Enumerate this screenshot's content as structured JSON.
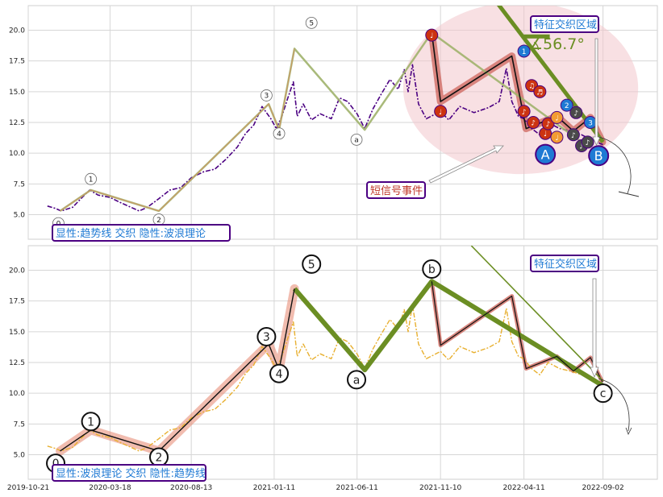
{
  "chart_data": [
    {
      "type": "line",
      "panel": "top",
      "ylim": [
        3.0,
        22.0
      ],
      "yticks": [
        5.0,
        7.5,
        10.0,
        12.5,
        15.0,
        17.5,
        20.0
      ],
      "ytick_labels": [
        "5.0",
        "7.5",
        "10.0",
        "12.5",
        "15.0",
        "17.5",
        "20.0"
      ],
      "xlim": [
        "2019-10-21",
        "2022-12-10"
      ],
      "grid": true,
      "price_color": "#4b0082",
      "price_series": [
        [
          "2019-11-25",
          5.7
        ],
        [
          "2019-12-10",
          5.5
        ],
        [
          "2019-12-20",
          5.3
        ],
        [
          "2020-01-10",
          5.6
        ],
        [
          "2020-01-25",
          6.3
        ],
        [
          "2020-02-10",
          7.0
        ],
        [
          "2020-02-25",
          6.6
        ],
        [
          "2020-03-18",
          6.4
        ],
        [
          "2020-04-05",
          6.0
        ],
        [
          "2020-04-25",
          5.6
        ],
        [
          "2020-05-10",
          5.3
        ],
        [
          "2020-05-25",
          5.6
        ],
        [
          "2020-06-15",
          6.3
        ],
        [
          "2020-07-05",
          7.0
        ],
        [
          "2020-07-25",
          7.2
        ],
        [
          "2020-08-13",
          8.0
        ],
        [
          "2020-09-05",
          8.5
        ],
        [
          "2020-09-25",
          8.7
        ],
        [
          "2020-10-15",
          9.5
        ],
        [
          "2020-11-05",
          10.5
        ],
        [
          "2020-11-20",
          11.6
        ],
        [
          "2020-12-05",
          12.3
        ],
        [
          "2020-12-20",
          13.8
        ],
        [
          "2021-01-05",
          12.8
        ],
        [
          "2021-01-15",
          12.0
        ],
        [
          "2021-01-25",
          13.0
        ],
        [
          "2021-02-05",
          14.5
        ],
        [
          "2021-02-15",
          15.8
        ],
        [
          "2021-02-22",
          13.0
        ],
        [
          "2021-03-05",
          14.0
        ],
        [
          "2021-03-20",
          12.7
        ],
        [
          "2021-04-05",
          13.2
        ],
        [
          "2021-04-25",
          12.8
        ],
        [
          "2021-05-10",
          14.5
        ],
        [
          "2021-05-25",
          14.2
        ],
        [
          "2021-06-11",
          13.2
        ],
        [
          "2021-06-25",
          12.0
        ],
        [
          "2021-07-10",
          13.6
        ],
        [
          "2021-07-25",
          14.8
        ],
        [
          "2021-08-10",
          16.0
        ],
        [
          "2021-08-25",
          15.2
        ],
        [
          "2021-09-05",
          16.8
        ],
        [
          "2021-09-12",
          15.0
        ],
        [
          "2021-09-20",
          17.2
        ],
        [
          "2021-10-01",
          14.0
        ],
        [
          "2021-10-15",
          12.8
        ],
        [
          "2021-11-10",
          13.4
        ],
        [
          "2021-11-25",
          12.7
        ],
        [
          "2021-12-15",
          13.8
        ],
        [
          "2022-01-10",
          13.3
        ],
        [
          "2022-02-05",
          13.7
        ],
        [
          "2022-02-25",
          14.2
        ],
        [
          "2022-03-10",
          16.9
        ],
        [
          "2022-03-20",
          14.2
        ],
        [
          "2022-04-01",
          13.0
        ],
        [
          "2022-04-11",
          12.8
        ],
        [
          "2022-04-25",
          12.0
        ],
        [
          "2022-05-10",
          11.5
        ],
        [
          "2022-05-25",
          12.5
        ],
        [
          "2022-06-15",
          12.0
        ],
        [
          "2022-07-05",
          11.8
        ],
        [
          "2022-07-25",
          11.5
        ],
        [
          "2022-08-15",
          11.0
        ],
        [
          "2022-09-02",
          10.7
        ]
      ],
      "trend_lines": [
        {
          "color": "#6b8e23",
          "points": [
            [
              "2022-01-05",
              25.0
            ],
            [
              "2022-09-02",
              10.9
            ]
          ]
        },
        {
          "color": "#6b8e23",
          "points": [
            [
              "2022-04-11",
              19.5
            ],
            [
              "2022-05-28",
              19.5
            ]
          ]
        }
      ],
      "wave_path": {
        "color": "#a0b26b",
        "points": [
          [
            "2019-12-18",
            5.3
          ],
          [
            "2020-02-12",
            7.0
          ],
          [
            "2020-06-15",
            5.3
          ],
          [
            "2021-01-01",
            14.0
          ],
          [
            "2021-01-20",
            11.9
          ],
          [
            "2021-02-17",
            18.5
          ],
          [
            "2021-06-25",
            11.9
          ],
          [
            "2021-10-25",
            19.8
          ],
          [
            "2022-07-25",
            10.9
          ]
        ]
      },
      "wave_labels": [
        {
          "text": "0",
          "x": "2019-12-15",
          "y": 4.3
        },
        {
          "text": "1",
          "x": "2020-02-12",
          "y": 7.9
        },
        {
          "text": "2",
          "x": "2020-06-15",
          "y": 4.6
        },
        {
          "text": "3",
          "x": "2020-12-28",
          "y": 14.7
        },
        {
          "text": "4",
          "x": "2021-01-20",
          "y": 11.6
        },
        {
          "text": "5",
          "x": "2021-03-20",
          "y": 20.6
        },
        {
          "text": "a",
          "x": "2021-06-10",
          "y": 11.1
        }
      ],
      "highlight_path": {
        "color": "#c0392b",
        "points": [
          [
            "2021-10-25",
            19.8
          ],
          [
            "2021-11-10",
            14.2
          ],
          [
            "2022-03-20",
            17.9
          ],
          [
            "2022-04-15",
            12.0
          ],
          [
            "2022-06-10",
            13.0
          ],
          [
            "2022-07-10",
            11.8
          ],
          [
            "2022-08-10",
            12.9
          ],
          [
            "2022-09-01",
            10.9
          ]
        ]
      },
      "event_markers": [
        {
          "text": "♩",
          "x": "2021-10-25",
          "y": 19.6,
          "color": "#cc3311"
        },
        {
          "text": "♩",
          "x": "2021-11-10",
          "y": 13.4,
          "color": "#cc3311"
        },
        {
          "text": "1",
          "x": "2022-04-11",
          "y": 18.3,
          "color": "#1f7ad4"
        },
        {
          "text": "♪",
          "x": "2022-04-11",
          "y": 13.4,
          "color": "#cc3311"
        },
        {
          "text": "♫",
          "x": "2022-04-25",
          "y": 15.5,
          "color": "#cc3311"
        },
        {
          "text": "♬",
          "x": "2022-05-10",
          "y": 15.0,
          "color": "#cc3311"
        },
        {
          "text": "♪",
          "x": "2022-04-28",
          "y": 12.5,
          "color": "#cc3311"
        },
        {
          "text": "♩",
          "x": "2022-05-20",
          "y": 11.6,
          "color": "#cc3311"
        },
        {
          "text": "♪",
          "x": "2022-05-25",
          "y": 12.4,
          "color": "#cc3311"
        },
        {
          "text": "♩",
          "x": "2022-06-10",
          "y": 12.9,
          "color": "#f39c33"
        },
        {
          "text": "♩",
          "x": "2022-06-10",
          "y": 11.3,
          "color": "#f39c33"
        },
        {
          "text": "2",
          "x": "2022-06-28",
          "y": 13.9,
          "color": "#1f7ad4"
        },
        {
          "text": "♪",
          "x": "2022-07-15",
          "y": 13.3,
          "color": "#4a4a4a"
        },
        {
          "text": "♪",
          "x": "2022-07-10",
          "y": 11.5,
          "color": "#4a4a4a"
        },
        {
          "text": "♪",
          "x": "2022-07-25",
          "y": 10.6,
          "color": "#4a4a4a"
        },
        {
          "text": "3",
          "x": "2022-08-10",
          "y": 12.5,
          "color": "#1f7ad4"
        },
        {
          "text": "♪",
          "x": "2022-08-05",
          "y": 10.9,
          "color": "#4a4a4a"
        }
      ],
      "big_markers": [
        {
          "text": "A",
          "x": "2022-05-20",
          "y": 9.9,
          "color": "#1f7ad4"
        },
        {
          "text": "B",
          "x": "2022-08-25",
          "y": 9.8,
          "color": "#1f7ad4"
        }
      ],
      "zone_ellipse": {
        "cx": "2022-04-05",
        "cy": 15.3,
        "rx_days": 214,
        "ry": 7.0
      },
      "annotations": {
        "legend_box": "显性:趋势线 交织 隐性:波浪理论",
        "zone_label": "特征交织区域",
        "angle_label": "∡56.7°",
        "signal_label": "短信号事件"
      }
    },
    {
      "type": "line",
      "panel": "bottom",
      "ylim": [
        3.0,
        22.0
      ],
      "yticks": [
        5.0,
        7.5,
        10.0,
        12.5,
        15.0,
        17.5,
        20.0
      ],
      "ytick_labels": [
        "5.0",
        "7.5",
        "10.0",
        "12.5",
        "15.0",
        "17.5",
        "20.0"
      ],
      "xlim": [
        "2019-10-21",
        "2022-12-10"
      ],
      "xticks": [
        "2019-10-21",
        "2020-03-18",
        "2020-08-13",
        "2021-01-11",
        "2021-06-11",
        "2021-11-10",
        "2022-04-11",
        "2022-09-02"
      ],
      "xtick_labels": [
        "2019-10-21",
        "2020-03-18",
        "2020-08-13",
        "2021-01-11",
        "2021-06-11",
        "2021-11-10",
        "2022-04-11",
        "2022-09-02"
      ],
      "grid": true,
      "price_color": "#e8b030",
      "price_series": [
        [
          "2019-11-25",
          5.7
        ],
        [
          "2019-12-10",
          5.5
        ],
        [
          "2019-12-20",
          5.3
        ],
        [
          "2020-01-10",
          5.6
        ],
        [
          "2020-01-25",
          6.3
        ],
        [
          "2020-02-10",
          7.0
        ],
        [
          "2020-02-25",
          6.6
        ],
        [
          "2020-03-18",
          6.4
        ],
        [
          "2020-04-05",
          6.0
        ],
        [
          "2020-04-25",
          5.6
        ],
        [
          "2020-05-10",
          5.3
        ],
        [
          "2020-05-25",
          5.6
        ],
        [
          "2020-06-15",
          6.3
        ],
        [
          "2020-07-05",
          7.0
        ],
        [
          "2020-07-25",
          7.2
        ],
        [
          "2020-08-13",
          8.0
        ],
        [
          "2020-09-05",
          8.5
        ],
        [
          "2020-09-25",
          8.7
        ],
        [
          "2020-10-15",
          9.5
        ],
        [
          "2020-11-05",
          10.5
        ],
        [
          "2020-11-20",
          11.6
        ],
        [
          "2020-12-05",
          12.3
        ],
        [
          "2020-12-20",
          13.8
        ],
        [
          "2021-01-05",
          12.8
        ],
        [
          "2021-01-15",
          12.0
        ],
        [
          "2021-01-25",
          13.0
        ],
        [
          "2021-02-05",
          14.5
        ],
        [
          "2021-02-15",
          15.8
        ],
        [
          "2021-02-22",
          13.0
        ],
        [
          "2021-03-05",
          14.0
        ],
        [
          "2021-03-20",
          12.7
        ],
        [
          "2021-04-05",
          13.2
        ],
        [
          "2021-04-25",
          12.8
        ],
        [
          "2021-05-10",
          14.5
        ],
        [
          "2021-05-25",
          14.2
        ],
        [
          "2021-06-11",
          13.2
        ],
        [
          "2021-06-25",
          12.0
        ],
        [
          "2021-07-10",
          13.6
        ],
        [
          "2021-07-25",
          14.8
        ],
        [
          "2021-08-10",
          16.0
        ],
        [
          "2021-08-25",
          15.2
        ],
        [
          "2021-09-05",
          16.8
        ],
        [
          "2021-09-12",
          15.0
        ],
        [
          "2021-09-20",
          17.2
        ],
        [
          "2021-10-01",
          14.0
        ],
        [
          "2021-10-15",
          12.8
        ],
        [
          "2021-11-10",
          13.4
        ],
        [
          "2021-11-25",
          12.7
        ],
        [
          "2021-12-15",
          13.8
        ],
        [
          "2022-01-10",
          13.3
        ],
        [
          "2022-02-05",
          13.7
        ],
        [
          "2022-02-25",
          14.2
        ],
        [
          "2022-03-10",
          16.9
        ],
        [
          "2022-03-20",
          14.2
        ],
        [
          "2022-04-01",
          13.0
        ],
        [
          "2022-04-11",
          12.8
        ],
        [
          "2022-04-25",
          12.0
        ],
        [
          "2022-05-10",
          11.5
        ],
        [
          "2022-05-25",
          12.5
        ],
        [
          "2022-06-15",
          12.0
        ],
        [
          "2022-07-05",
          11.8
        ],
        [
          "2022-07-25",
          11.5
        ],
        [
          "2022-08-15",
          11.0
        ],
        [
          "2022-09-02",
          10.7
        ]
      ],
      "trend_lines": [
        {
          "color": "#6b8e23",
          "points": [
            [
              "2022-01-05",
              22.0
            ],
            [
              "2022-09-02",
              11.0
            ]
          ]
        }
      ],
      "wave_path": {
        "color": "#6b8e23",
        "points": [
          [
            "2021-02-17",
            18.5
          ],
          [
            "2021-06-25",
            11.9
          ],
          [
            "2021-10-25",
            19.1
          ],
          [
            "2022-09-02",
            10.6
          ]
        ]
      },
      "highlight_path": {
        "color": "#e8907a",
        "points": [
          [
            "2019-12-18",
            5.3
          ],
          [
            "2020-02-12",
            7.0
          ],
          [
            "2020-06-15",
            5.3
          ],
          [
            "2021-01-01",
            14.0
          ],
          [
            "2021-01-20",
            11.9
          ],
          [
            "2021-02-17",
            18.5
          ]
        ]
      },
      "detail_path": {
        "color": "#c0392b",
        "points": [
          [
            "2021-10-25",
            19.1
          ],
          [
            "2021-11-10",
            13.9
          ],
          [
            "2022-03-20",
            17.9
          ],
          [
            "2022-04-15",
            12.0
          ],
          [
            "2022-06-10",
            13.0
          ],
          [
            "2022-07-10",
            11.8
          ],
          [
            "2022-08-10",
            12.9
          ],
          [
            "2022-09-01",
            10.9
          ]
        ]
      },
      "wave_labels": [
        {
          "text": "0",
          "x": "2019-12-10",
          "y": 4.3
        },
        {
          "text": "1",
          "x": "2020-02-12",
          "y": 7.7
        },
        {
          "text": "2",
          "x": "2020-06-15",
          "y": 4.8
        },
        {
          "text": "3",
          "x": "2020-12-28",
          "y": 14.6
        },
        {
          "text": "4",
          "x": "2021-01-20",
          "y": 11.6
        },
        {
          "text": "5",
          "x": "2021-03-20",
          "y": 20.5
        },
        {
          "text": "a",
          "x": "2021-06-10",
          "y": 11.1
        },
        {
          "text": "b",
          "x": "2021-10-25",
          "y": 20.1
        },
        {
          "text": "c",
          "x": "2022-09-02",
          "y": 10.0
        }
      ],
      "annotations": {
        "legend_box": "显性:波浪理论 交织 隐性:趋势线",
        "zone_label": "特征交织区域"
      }
    }
  ]
}
